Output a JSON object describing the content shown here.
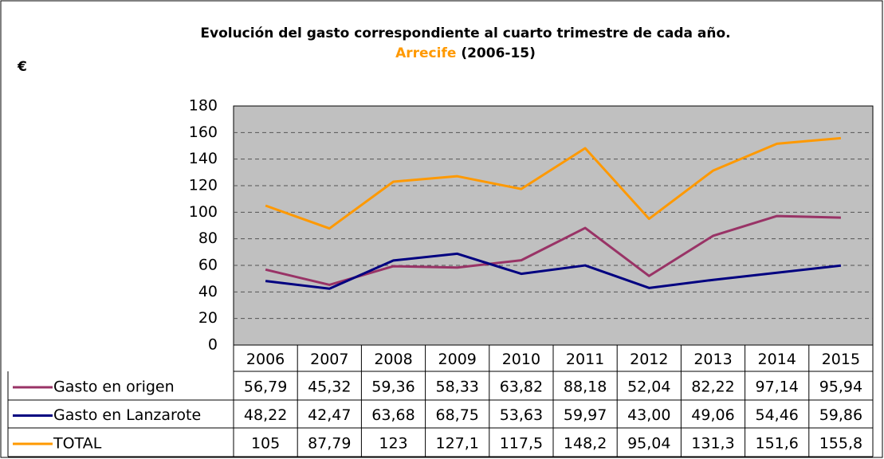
{
  "chart_data": {
    "type": "line",
    "title": "Evolución del gasto correspondiente al cuarto trimestre de cada año.",
    "subtitle": "Arrecife",
    "subtitle_color": "#ff9900",
    "subtitle_period": "(2006-15)",
    "ylabel": "€",
    "categories": [
      "2006",
      "2007",
      "2008",
      "2009",
      "2010",
      "2011",
      "2012",
      "2013",
      "2014",
      "2015"
    ],
    "series": [
      {
        "name": "Gasto en origen",
        "color": "#993366",
        "values": [
          56.79,
          45.32,
          59.36,
          58.33,
          63.82,
          88.18,
          52.04,
          82.22,
          97.14,
          95.94
        ],
        "value_labels": [
          "56,79",
          "45,32",
          "59,36",
          "58,33",
          "63,82",
          "88,18",
          "52,04",
          "82,22",
          "97,14",
          "95,94"
        ]
      },
      {
        "name": "Gasto en Lanzarote",
        "color": "#000080",
        "values": [
          48.22,
          42.47,
          63.68,
          68.75,
          53.63,
          59.97,
          43.0,
          49.06,
          54.46,
          59.86
        ],
        "value_labels": [
          "48,22",
          "42,47",
          "63,68",
          "68,75",
          "53,63",
          "59,97",
          "43,00",
          "49,06",
          "54,46",
          "59,86"
        ]
      },
      {
        "name": "TOTAL",
        "color": "#ff9900",
        "values": [
          105,
          87.79,
          123,
          127.1,
          117.5,
          148.2,
          95.04,
          131.3,
          151.6,
          155.8
        ],
        "value_labels": [
          "105",
          "87,79",
          "123",
          "127,1",
          "117,5",
          "148,2",
          "95,04",
          "131,3",
          "151,6",
          "155,8"
        ]
      }
    ],
    "ylim": [
      0,
      180
    ],
    "yticks": [
      0,
      20,
      40,
      60,
      80,
      100,
      120,
      140,
      160,
      180
    ],
    "grid": true,
    "plot_background": "#c0c0c0"
  }
}
